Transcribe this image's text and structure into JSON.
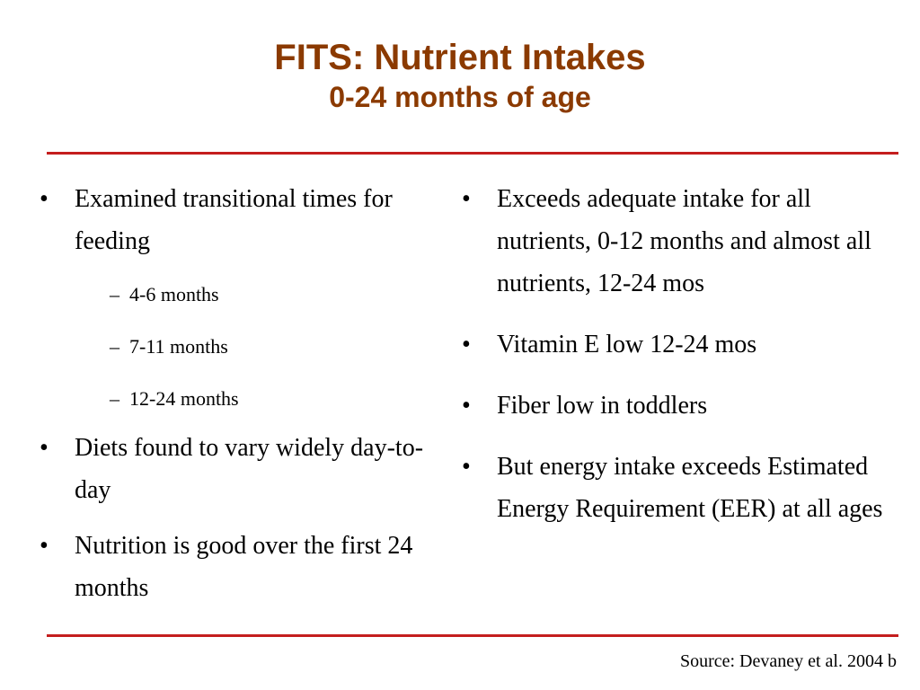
{
  "header": {
    "title": "FITS: Nutrient Intakes",
    "subtitle": "0-24 months of age"
  },
  "left_column": {
    "b1": "Examined transitional times for feeding",
    "b1_subs": [
      "4-6 months",
      "7-11 months",
      "12-24 months"
    ],
    "b2": "Diets found to vary widely day-to-day",
    "b3": "Nutrition is good over the first 24 months"
  },
  "right_column": {
    "b1": "Exceeds adequate intake for all nutrients, 0-12 months and almost all nutrients, 12-24 mos",
    "b2": "Vitamin E low 12-24 mos",
    "b3": "Fiber low in toddlers",
    "b4": "But energy intake exceeds Estimated Energy Requirement (EER) at all ages"
  },
  "footer": {
    "source": "Source: Devaney et al. 2004 b"
  },
  "colors": {
    "title": "#8B3A00",
    "rule": "#C41E1E"
  }
}
